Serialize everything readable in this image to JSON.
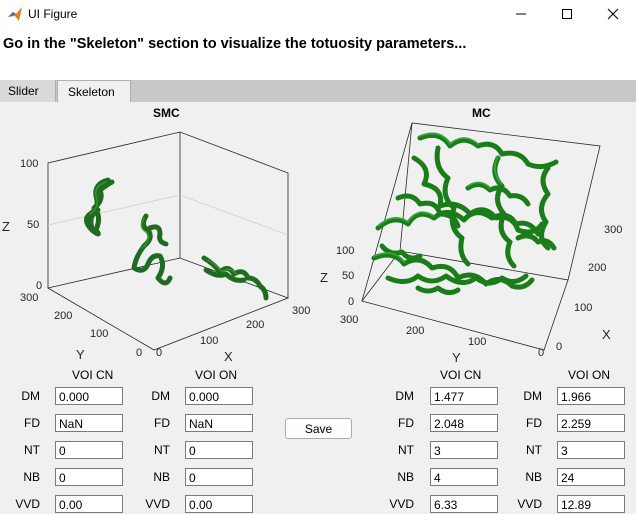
{
  "window": {
    "title": "UI Figure"
  },
  "banner": {
    "text": "Go in the \"Skeleton\" section to visualize the totuosity parameters..."
  },
  "tabs": [
    {
      "label": "Slider"
    },
    {
      "label": "Skeleton"
    }
  ],
  "plots": {
    "smc": {
      "title": "SMC",
      "xlabel": "X",
      "ylabel": "Y",
      "zlabel": "Z",
      "z_ticks": [
        "100",
        "50",
        "0"
      ],
      "y_ticks": [
        "300",
        "200",
        "100",
        "0"
      ],
      "x_ticks": [
        "0",
        "100",
        "200",
        "300"
      ],
      "render_color": "#1f6b1f"
    },
    "mc": {
      "title": "MC",
      "xlabel": "X",
      "ylabel": "Y",
      "zlabel": "Z",
      "z_ticks": [
        "100",
        "50",
        "0"
      ],
      "y_ticks": [
        "300",
        "200",
        "100",
        "0"
      ],
      "x_ticks": [
        "0",
        "100",
        "200",
        "300"
      ],
      "render_color": "#1a8a1a"
    }
  },
  "groups": [
    {
      "header": "VOI CN",
      "rows": [
        {
          "label": "DM",
          "value": "0.000"
        },
        {
          "label": "FD",
          "value": "NaN"
        },
        {
          "label": "NT",
          "value": "0"
        },
        {
          "label": "NB",
          "value": "0"
        },
        {
          "label": "VVD",
          "value": "0.00"
        }
      ]
    },
    {
      "header": "VOI ON",
      "rows": [
        {
          "label": "DM",
          "value": "0.000"
        },
        {
          "label": "FD",
          "value": "NaN"
        },
        {
          "label": "NT",
          "value": "0"
        },
        {
          "label": "NB",
          "value": "0"
        },
        {
          "label": "VVD",
          "value": "0.00"
        }
      ]
    },
    {
      "header": "VOI CN",
      "rows": [
        {
          "label": "DM",
          "value": "1.477"
        },
        {
          "label": "FD",
          "value": "2.048"
        },
        {
          "label": "NT",
          "value": "3"
        },
        {
          "label": "NB",
          "value": "4"
        },
        {
          "label": "VVD",
          "value": "6.33"
        }
      ]
    },
    {
      "header": "VOI ON",
      "rows": [
        {
          "label": "DM",
          "value": "1.966"
        },
        {
          "label": "FD",
          "value": "2.259"
        },
        {
          "label": "NT",
          "value": "3"
        },
        {
          "label": "NB",
          "value": "24"
        },
        {
          "label": "VVD",
          "value": "12.89"
        }
      ]
    }
  ],
  "save_label": "Save"
}
